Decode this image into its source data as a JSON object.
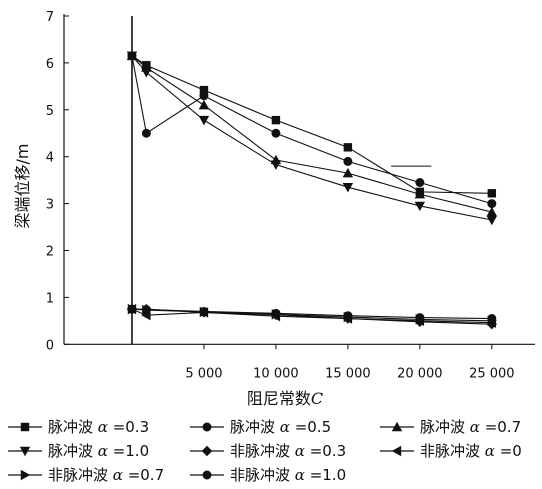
{
  "chart_data": {
    "type": "line",
    "xlabel": "阻尼常数",
    "xlabel_var": "C",
    "ylabel": "梁端位移/m",
    "xlim": [
      -5000,
      28000
    ],
    "ylim": [
      -0.1,
      7
    ],
    "x_ticks": [
      5000,
      10000,
      15000,
      20000,
      25000
    ],
    "x_tick_labels": [
      "5 000",
      "10 000",
      "15 000",
      "20 000",
      "25 000"
    ],
    "y_ticks": [
      0,
      1,
      2,
      3,
      4,
      5,
      6,
      7
    ],
    "y_tick_labels": [
      "0",
      "1",
      "2",
      "3",
      "4",
      "5",
      "6",
      "7"
    ],
    "x": [
      0,
      1000,
      5000,
      10000,
      15000,
      20000,
      25000
    ],
    "series": [
      {
        "name": "脉冲波 α =0.3",
        "prefix": "脉冲波 ",
        "alpha_value": "=0.3",
        "marker": "square",
        "values": [
          6.15,
          5.95,
          5.42,
          4.78,
          4.2,
          3.25,
          3.22
        ]
      },
      {
        "name": "脉冲波 α =0.5",
        "prefix": "脉冲波 ",
        "alpha_value": "=0.5",
        "marker": "circle",
        "values": [
          6.15,
          4.5,
          5.3,
          4.5,
          3.9,
          3.45,
          3.0
        ]
      },
      {
        "name": "脉冲波 α =0.7",
        "prefix": "脉冲波 ",
        "alpha_value": "=0.7",
        "marker": "triangle-up",
        "values": [
          6.15,
          5.9,
          5.1,
          3.93,
          3.65,
          3.2,
          2.82
        ]
      },
      {
        "name": "脉冲波 α =1.0",
        "prefix": "脉冲波 ",
        "alpha_value": "=1.0",
        "marker": "triangle-down",
        "values": [
          6.15,
          5.8,
          4.78,
          3.83,
          3.35,
          2.95,
          2.65
        ]
      },
      {
        "name": "非脉冲波 α =0.3",
        "prefix": "非脉冲波 ",
        "alpha_value": "=0.3",
        "marker": "diamond",
        "values": [
          0.75,
          0.75,
          0.68,
          0.63,
          0.55,
          0.48,
          0.43
        ]
      },
      {
        "name": "非脉冲波 α =0",
        "prefix": "非脉冲波 ",
        "alpha_value": "=0",
        "marker": "triangle-left",
        "values": [
          0.75,
          0.62,
          0.68,
          0.6,
          0.55,
          0.5,
          0.46
        ]
      },
      {
        "name": "非脉冲波 α =0.7",
        "prefix": "非脉冲波 ",
        "alpha_value": "=0.7",
        "marker": "triangle-right",
        "values": [
          0.75,
          0.73,
          0.69,
          0.64,
          0.58,
          0.53,
          0.5
        ]
      },
      {
        "name": "非脉冲波 α =1.0",
        "prefix": "非脉冲波 ",
        "alpha_value": "=1.0",
        "marker": "circle",
        "values": [
          0.75,
          0.74,
          0.7,
          0.66,
          0.61,
          0.57,
          0.55
        ]
      }
    ],
    "annotations": [
      {
        "type": "segment",
        "x": [
          18000,
          20800
        ],
        "y": [
          3.8,
          3.8
        ]
      },
      {
        "type": "vertical-line",
        "x": 0,
        "y": [
          0,
          7
        ]
      }
    ],
    "grid": false,
    "legend_position": "bottom",
    "colors": {
      "line": "#111111",
      "marker": "#111111",
      "background": "#ffffff"
    }
  }
}
